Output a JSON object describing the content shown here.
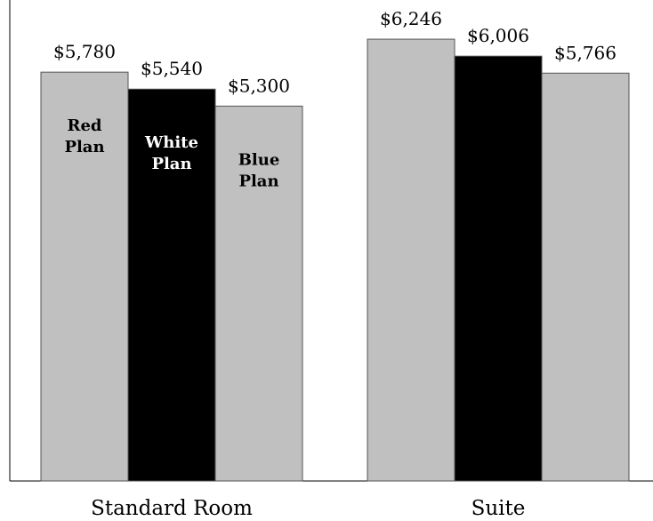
{
  "chart_data": {
    "type": "bar",
    "categories": [
      "Standard Room",
      "Suite"
    ],
    "series": [
      {
        "name": "Red Plan",
        "label_lines": [
          "Red",
          "Plan"
        ],
        "color": "#c0c0c0",
        "text_color": "#000000",
        "values": [
          5780,
          6246
        ],
        "value_labels": [
          "$5,780",
          "$6,246"
        ]
      },
      {
        "name": "White Plan",
        "label_lines": [
          "White",
          "Plan"
        ],
        "color": "#000000",
        "text_color": "#ffffff",
        "values": [
          5540,
          6006
        ],
        "value_labels": [
          "$5,540",
          "$6,006"
        ]
      },
      {
        "name": "Blue Plan",
        "label_lines": [
          "Blue",
          "Plan"
        ],
        "color": "#c0c0c0",
        "text_color": "#000000",
        "values": [
          5300,
          5766
        ],
        "value_labels": [
          "$5,300",
          "$5,766"
        ]
      }
    ],
    "ylim": [
      0,
      6800
    ],
    "grid": false,
    "legend": "inside-bars"
  }
}
